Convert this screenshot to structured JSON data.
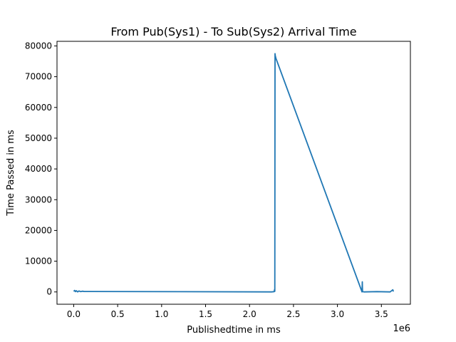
{
  "chart_data": {
    "type": "line",
    "title": "From Pub(Sys1) - To Sub(Sys2) Arrival Time",
    "xlabel": "Publishedtime in ms",
    "ylabel": "Time Passed in ms",
    "x_offset_label": "1e6",
    "xlim": [
      -190000,
      3830000
    ],
    "ylim": [
      -4000,
      81500
    ],
    "xticks": [
      0,
      500000,
      1000000,
      1500000,
      2000000,
      2500000,
      3000000,
      3500000
    ],
    "xtick_labels": [
      "0.0",
      "0.5",
      "1.0",
      "1.5",
      "2.0",
      "2.5",
      "3.0",
      "3.5"
    ],
    "yticks": [
      0,
      10000,
      20000,
      30000,
      40000,
      50000,
      60000,
      70000,
      80000
    ],
    "ytick_labels": [
      "0",
      "10000",
      "20000",
      "30000",
      "40000",
      "50000",
      "60000",
      "70000",
      "80000"
    ],
    "grid": false,
    "series": [
      {
        "color": "#1f77b4",
        "x": [
          0,
          10000,
          20000,
          30000,
          45000,
          60000,
          80000,
          100000,
          120000,
          2250000,
          2280000,
          2285000,
          2288000,
          2290000,
          2292000,
          2300000,
          3280000,
          3283000,
          3285000,
          3290000,
          3300000,
          3450000,
          3600000,
          3630000,
          3635000,
          3640000
        ],
        "y": [
          200,
          500,
          100,
          400,
          0,
          300,
          100,
          250,
          150,
          0,
          100,
          800,
          200,
          77500,
          77000,
          76000,
          0,
          3300,
          200,
          100,
          0,
          100,
          0,
          700,
          300,
          400
        ]
      }
    ]
  }
}
